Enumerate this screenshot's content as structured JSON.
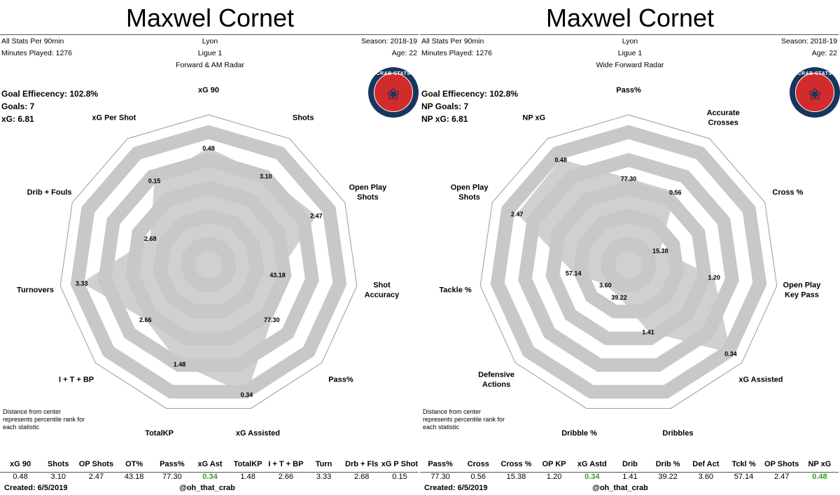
{
  "left": {
    "title": "Maxwel Cornet",
    "header_left": [
      "All Stats Per 90min",
      "Minutes Played: 1276"
    ],
    "header_center": [
      "Lyon",
      "Ligue 1",
      "Forward & AM Radar"
    ],
    "header_right": [
      "Season: 2018-19",
      "Age: 22"
    ],
    "key_stats": [
      "Goal Effiecency: 102.8%",
      "Goals: 7",
      "xG: 6.81"
    ],
    "note": "Distance from center represents percentile rank for each statistic",
    "created": "Created: 6/5/2019",
    "handle": "@oh_that_crab",
    "logo_text": "CRAB STATS",
    "table_headers": [
      "xG 90",
      "Shots",
      "OP Shots",
      "OT%",
      "Pass%",
      "xG Ast",
      "TotalKP",
      "I + T + BP",
      "Turn",
      "Drb + Fls",
      "xG P Shot"
    ],
    "table_values": [
      "0.48",
      "3.10",
      "2.47",
      "43.18",
      "77.30",
      "0.34",
      "1.48",
      "2.66",
      "3.33",
      "2.68",
      "0.15"
    ],
    "table_highlight": 5
  },
  "right": {
    "title": "Maxwel Cornet",
    "header_left": [
      "All Stats Per 90min",
      "Minutes Played: 1276"
    ],
    "header_center": [
      "Lyon",
      "Ligue 1",
      "Wide Forward Radar"
    ],
    "header_right": [
      "Season: 2018-19",
      "Age: 22"
    ],
    "key_stats": [
      "Goal Effiecency: 102.8%",
      "NP Goals: 7",
      "NP xG: 6.81"
    ],
    "note": "Distance from center represents percentile rank for each statistic",
    "created": "Created: 6/5/2019",
    "handle": "@oh_that_crab",
    "logo_text": "CRAB STATS",
    "table_headers": [
      "Pass%",
      "Cross",
      "Cross %",
      "OP KP",
      "xG Astd",
      "Drib",
      "Drib %",
      "Def Act",
      "Tckl %",
      "OP Shots",
      "NP xG"
    ],
    "table_values": [
      "77.30",
      "0.56",
      "15.38",
      "1.20",
      "0.34",
      "1.41",
      "39.22",
      "3.60",
      "57.14",
      "2.47",
      "0.48"
    ],
    "table_highlight": [
      4,
      10
    ]
  },
  "chart_data": [
    {
      "type": "radar",
      "title": "Maxwel Cornet",
      "subtitle": "Forward & AM Radar",
      "axes": [
        {
          "label": "xG 90",
          "value_label": "0.48",
          "percentile": 0.84
        },
        {
          "label": "Shots",
          "value_label": "3.10",
          "percentile": 0.76
        },
        {
          "label": "Open Play Shots",
          "value_label": "2.47",
          "percentile": 0.85
        },
        {
          "label": "Shot Accuracy",
          "value_label": "43.18",
          "percentile": 0.5
        },
        {
          "label": "Pass%",
          "value_label": "77.30",
          "percentile": 0.6
        },
        {
          "label": "xG Assisted",
          "value_label": "0.34",
          "percentile": 0.97
        },
        {
          "label": "TotalKP",
          "value_label": "1.48",
          "percentile": 0.74
        },
        {
          "label": "I + T + BP",
          "value_label": "2.66",
          "percentile": 0.6
        },
        {
          "label": "Turnovers",
          "value_label": "3.33",
          "percentile": 0.92
        },
        {
          "label": "Drib + Fouls",
          "value_label": "2.68",
          "percentile": 0.46
        },
        {
          "label": "xG Per Shot",
          "value_label": "0.15",
          "percentile": 0.72
        }
      ],
      "rings": 10,
      "fill_color": "#c8c8c8"
    },
    {
      "type": "radar",
      "title": "Maxwel Cornet",
      "subtitle": "Wide Forward Radar",
      "axes": [
        {
          "label": "Pass%",
          "value_label": "77.30",
          "percentile": 0.62
        },
        {
          "label": "Accurate Crosses",
          "value_label": "0.56",
          "percentile": 0.62
        },
        {
          "label": "Cross %",
          "value_label": "15.38",
          "percentile": 0.25
        },
        {
          "label": "Open Play Key Pass",
          "value_label": "1.20",
          "percentile": 0.62
        },
        {
          "label": "xG Assisted",
          "value_label": "0.34",
          "percentile": 0.97
        },
        {
          "label": "Dribbles",
          "value_label": "1.41",
          "percentile": 0.5
        },
        {
          "label": "Dribble %",
          "value_label": "39.22",
          "percentile": 0.24
        },
        {
          "label": "Defensive Actions",
          "value_label": "3.60",
          "percentile": 0.22
        },
        {
          "label": "Tackle %",
          "value_label": "57.14",
          "percentile": 0.4
        },
        {
          "label": "Open Play Shots",
          "value_label": "2.47",
          "percentile": 0.88
        },
        {
          "label": "NP xG",
          "value_label": "0.48",
          "percentile": 0.9
        }
      ],
      "rings": 10,
      "fill_color": "#c8c8c8"
    }
  ]
}
